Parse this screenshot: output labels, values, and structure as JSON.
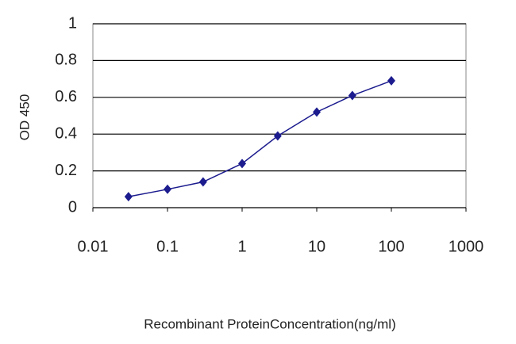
{
  "chart_data": {
    "type": "line",
    "xlabel": "Recombinant ProteinConcentration(ng/ml)",
    "ylabel": "OD 450",
    "x": [
      0.03,
      0.1,
      0.3,
      1,
      3,
      10,
      30,
      100
    ],
    "values": [
      0.06,
      0.1,
      0.14,
      0.24,
      0.39,
      0.52,
      0.61,
      0.69
    ],
    "color": "#1c1c8f",
    "xscale": "log",
    "xlim": [
      0.01,
      1000
    ],
    "xticks": [
      0.01,
      0.1,
      1,
      10,
      100,
      1000
    ],
    "ylim": [
      0,
      1
    ],
    "yticks": [
      0,
      0.2,
      0.4,
      0.6,
      0.8,
      1
    ],
    "grid": true
  }
}
